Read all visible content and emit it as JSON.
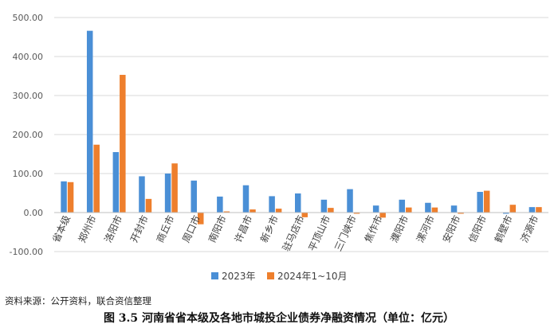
{
  "chart_data": {
    "type": "bar",
    "categories": [
      "省本级",
      "郑州市",
      "洛阳市",
      "开封市",
      "商丘市",
      "周口市",
      "南阳市",
      "许昌市",
      "新乡市",
      "驻马店市",
      "平顶山市",
      "三门峡市",
      "焦作市",
      "濮阳市",
      "漯河市",
      "安阳市",
      "信阳市",
      "鹤壁市",
      "济源市"
    ],
    "series": [
      {
        "name": "2023年",
        "color": "#4a8fd6",
        "values": [
          80,
          466,
          155,
          93,
          100,
          82,
          41,
          70,
          42,
          49,
          33,
          60,
          18,
          33,
          25,
          18,
          53,
          -3,
          14
        ]
      },
      {
        "name": "2024年1~10月",
        "color": "#ee7f2d",
        "values": [
          78,
          174,
          353,
          35,
          126,
          -30,
          3,
          8,
          10,
          -12,
          12,
          -3,
          -13,
          13,
          13,
          -3,
          56,
          20,
          14
        ]
      }
    ],
    "y_tick_labels": [
      "500.00",
      "400.00",
      "300.00",
      "200.00",
      "100.00",
      "0.00",
      "-100.00"
    ],
    "ylim": [
      -100,
      500
    ],
    "grid": true,
    "legend": "bottom"
  },
  "source_text": "资料来源：公开资料，联合资信整理",
  "caption": "图 3.5    河南省省本级及各地市城投企业债券净融资情况（单位：亿元）"
}
